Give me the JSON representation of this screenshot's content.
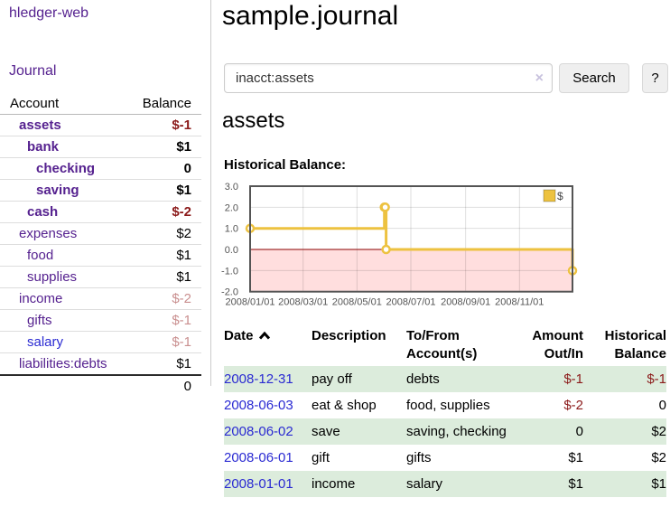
{
  "colors": {
    "purple": "#55218f",
    "blue": "#2a2ad2",
    "negative": "#8b1a1a",
    "faded": "#c98f8f",
    "stripe_green": "#dcecdc",
    "button_bg": "#efefef"
  },
  "app": {
    "brand": "hledger-web",
    "nav_journal": "Journal"
  },
  "sidebar": {
    "header": {
      "account": "Account",
      "balance": "Balance"
    },
    "accounts": [
      {
        "name": "assets",
        "depth": 0,
        "bold": true,
        "balance": "$-1",
        "balance_style": "negative"
      },
      {
        "name": "bank",
        "depth": 1,
        "bold": true,
        "balance": "$1",
        "balance_style": "positive"
      },
      {
        "name": "checking",
        "depth": 2,
        "bold": true,
        "balance": "0",
        "balance_style": "positive"
      },
      {
        "name": "saving",
        "depth": 2,
        "bold": true,
        "balance": "$1",
        "balance_style": "positive"
      },
      {
        "name": "cash",
        "depth": 1,
        "bold": true,
        "balance": "$-2",
        "balance_style": "negative"
      },
      {
        "name": "expenses",
        "depth": 0,
        "bold": false,
        "balance": "$2",
        "balance_style": "positive"
      },
      {
        "name": "food",
        "depth": 1,
        "bold": false,
        "balance": "$1",
        "balance_style": "positive"
      },
      {
        "name": "supplies",
        "depth": 1,
        "bold": false,
        "balance": "$1",
        "balance_style": "positive"
      },
      {
        "name": "income",
        "depth": 0,
        "bold": false,
        "balance": "$-2",
        "balance_style": "faded"
      },
      {
        "name": "gifts",
        "depth": 1,
        "bold": false,
        "balance": "$-1",
        "balance_style": "faded"
      },
      {
        "name": "salary",
        "depth": 1,
        "bold": false,
        "balance": "$-1",
        "balance_style": "faded",
        "link_color": "blue"
      },
      {
        "name": "liabilities:debts",
        "depth": 0,
        "bold": false,
        "balance": "$1",
        "balance_style": "positive"
      }
    ],
    "total": "0"
  },
  "header": {
    "title": "sample.journal"
  },
  "search": {
    "value": "inacct:assets",
    "clear_label": "×",
    "button": "Search",
    "help_button": "?"
  },
  "main": {
    "account_title": "assets",
    "chart_label": "Historical Balance:"
  },
  "chart_data": {
    "type": "line",
    "title": "Historical Balance",
    "series": [
      {
        "name": "$",
        "color": "#EDC240",
        "points": [
          [
            "2008-01-01",
            1
          ],
          [
            "2008-06-01",
            2
          ],
          [
            "2008-06-02",
            2
          ],
          [
            "2008-06-03",
            0
          ],
          [
            "2008-12-31",
            -1
          ]
        ]
      }
    ],
    "ylim": [
      -2,
      3
    ],
    "y_ticks": [
      3.0,
      2.0,
      1.0,
      0.0,
      -1.0,
      -2.0
    ],
    "x_ticks": [
      {
        "date": "2008-01-01",
        "label": "2008/01/01"
      },
      {
        "date": "2008-03-01",
        "label": "2008/03/01"
      },
      {
        "date": "2008-05-01",
        "label": "2008/05/01"
      },
      {
        "date": "2008-07-01",
        "label": "2008/07/01"
      },
      {
        "date": "2008-09-01",
        "label": "2008/09/01"
      },
      {
        "date": "2008-11-01",
        "label": "2008/11/01"
      }
    ],
    "xrange": [
      "2008-01-01",
      "2008-12-31"
    ],
    "legend_position": "top-right",
    "grid": true,
    "negative_region_color": "#ffdede",
    "zero_line_color": "#8b0000",
    "frame_color": "#545454",
    "tick_text_color": "#545454"
  },
  "register": {
    "columns": {
      "date": "Date",
      "description": "Description",
      "accounts": "To/From Account(s)",
      "amount": "Amount Out/In",
      "balance": "Historical Balance"
    },
    "rows": [
      {
        "date": "2008-12-31",
        "description": "pay off",
        "accounts": "debts",
        "amount": "$-1",
        "amount_neg": true,
        "balance": "$-1",
        "balance_neg": true
      },
      {
        "date": "2008-06-03",
        "description": "eat & shop",
        "accounts": "food, supplies",
        "amount": "$-2",
        "amount_neg": true,
        "balance": "0",
        "balance_neg": false
      },
      {
        "date": "2008-06-02",
        "description": "save",
        "accounts": "saving, checking",
        "amount": "0",
        "amount_neg": false,
        "balance": "$2",
        "balance_neg": false
      },
      {
        "date": "2008-06-01",
        "description": "gift",
        "accounts": "gifts",
        "amount": "$1",
        "amount_neg": false,
        "balance": "$2",
        "balance_neg": false
      },
      {
        "date": "2008-01-01",
        "description": "income",
        "accounts": "salary",
        "amount": "$1",
        "amount_neg": false,
        "balance": "$1",
        "balance_neg": false
      }
    ]
  }
}
